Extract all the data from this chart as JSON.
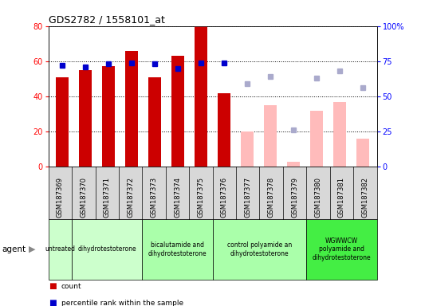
{
  "title": "GDS2782 / 1558101_at",
  "samples": [
    "GSM187369",
    "GSM187370",
    "GSM187371",
    "GSM187372",
    "GSM187373",
    "GSM187374",
    "GSM187375",
    "GSM187376",
    "GSM187377",
    "GSM187378",
    "GSM187379",
    "GSM187380",
    "GSM187381",
    "GSM187382"
  ],
  "count_values": [
    51,
    55,
    57,
    66,
    51,
    63,
    80,
    42,
    null,
    null,
    null,
    null,
    null,
    null
  ],
  "percentile_rank": [
    72,
    71,
    73,
    74,
    73,
    70,
    74,
    74,
    null,
    null,
    null,
    null,
    null,
    null
  ],
  "absent_value": [
    null,
    null,
    null,
    null,
    null,
    null,
    null,
    null,
    20,
    35,
    3,
    32,
    37,
    16
  ],
  "absent_rank": [
    null,
    null,
    null,
    null,
    null,
    null,
    null,
    null,
    59,
    64,
    26,
    63,
    68,
    56
  ],
  "agent_groups": [
    {
      "label": "untreated",
      "indices": [
        0
      ],
      "color": "#ccffcc"
    },
    {
      "label": "dihydrotestoterone",
      "indices": [
        1,
        2,
        3
      ],
      "color": "#ccffcc"
    },
    {
      "label": "bicalutamide and\ndihydrotestoterone",
      "indices": [
        4,
        5,
        6
      ],
      "color": "#aaffaa"
    },
    {
      "label": "control polyamide an\ndihydrotestoterone",
      "indices": [
        7,
        8,
        9,
        10
      ],
      "color": "#aaffaa"
    },
    {
      "label": "WGWWCW\npolyamide and\ndihydrotestoterone",
      "indices": [
        11,
        12,
        13
      ],
      "color": "#44ee44"
    }
  ],
  "ylim_left": [
    0,
    80
  ],
  "ylim_right": [
    0,
    100
  ],
  "yticks_left": [
    0,
    20,
    40,
    60,
    80
  ],
  "yticks_right": [
    0,
    25,
    50,
    75,
    100
  ],
  "bar_color_present": "#cc0000",
  "bar_color_absent": "#ffbbbb",
  "dot_color_present": "#0000cc",
  "dot_color_absent": "#aaaacc",
  "bar_width": 0.55,
  "col_bg": "#d8d8d8",
  "plot_bg": "#ffffff"
}
